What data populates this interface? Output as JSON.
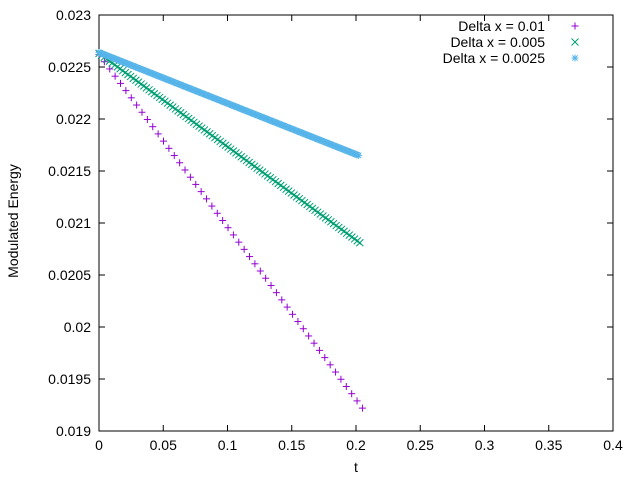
{
  "chart_data": {
    "type": "scatter",
    "title": "",
    "xlabel": "t",
    "ylabel": "Modulated Energy",
    "xlim": [
      0,
      0.4
    ],
    "ylim": [
      0.019,
      0.023
    ],
    "xticks": [
      0,
      0.05,
      0.1,
      0.15,
      0.2,
      0.25,
      0.3,
      0.35,
      0.4
    ],
    "xtick_labels": [
      "0",
      "0.05",
      "0.1",
      "0.15",
      "0.2",
      "0.25",
      "0.3",
      "0.35",
      "0.4"
    ],
    "yticks": [
      0.019,
      0.0195,
      0.02,
      0.0205,
      0.021,
      0.0215,
      0.022,
      0.0225,
      0.023
    ],
    "ytick_labels": [
      "0.019",
      "0.0195",
      "0.02",
      "0.0205",
      "0.021",
      "0.0215",
      "0.022",
      "0.0225",
      "0.023"
    ],
    "grid": false,
    "legend_position": "top-right",
    "series": [
      {
        "name": "Delta x = 0.01",
        "marker": "plus",
        "color": "#9400d3",
        "x_start": 0,
        "x_end": 0.205,
        "points": 50,
        "y_start": 0.02262,
        "y_end": 0.01922
      },
      {
        "name": "Delta x = 0.005",
        "marker": "cross",
        "color": "#009e73",
        "x_start": 0,
        "x_end": 0.203,
        "points": 100,
        "y_start": 0.02263,
        "y_end": 0.02081
      },
      {
        "name": "Delta x = 0.0025",
        "marker": "star",
        "color": "#56b4e9",
        "x_start": 0,
        "x_end": 0.202,
        "points": 200,
        "y_start": 0.02264,
        "y_end": 0.02165
      }
    ]
  }
}
